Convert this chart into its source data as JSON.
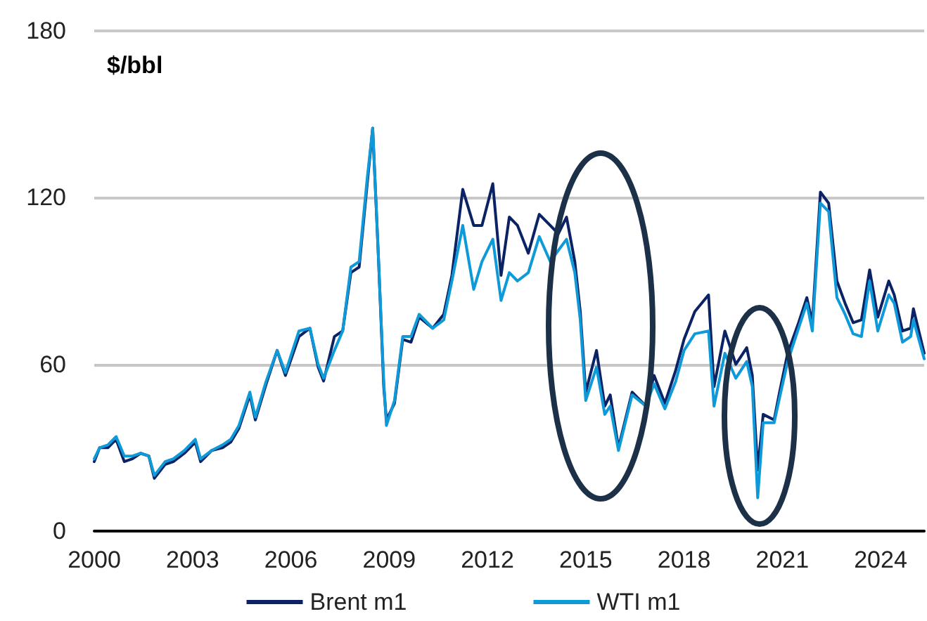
{
  "chart_data": {
    "type": "line",
    "ylabel": "$/bbl",
    "x": [
      "2000-01",
      "2000-03",
      "2000-06",
      "2000-09",
      "2000-12",
      "2001-03",
      "2001-06",
      "2001-09",
      "2001-11",
      "2002-03",
      "2002-06",
      "2002-10",
      "2003-02",
      "2003-04",
      "2003-08",
      "2003-12",
      "2004-03",
      "2004-06",
      "2004-10",
      "2004-12",
      "2005-04",
      "2005-08",
      "2005-11",
      "2006-04",
      "2006-08",
      "2006-11",
      "2007-01",
      "2007-05",
      "2007-08",
      "2007-11",
      "2008-02",
      "2008-05",
      "2008-07",
      "2008-09",
      "2008-11",
      "2008-12",
      "2009-03",
      "2009-06",
      "2009-09",
      "2009-12",
      "2010-05",
      "2010-09",
      "2010-12",
      "2011-04",
      "2011-08",
      "2011-11",
      "2012-03",
      "2012-06",
      "2012-09",
      "2012-12",
      "2013-04",
      "2013-08",
      "2013-12",
      "2014-03",
      "2014-06",
      "2014-09",
      "2014-11",
      "2015-01",
      "2015-05",
      "2015-08",
      "2015-10",
      "2016-01",
      "2016-06",
      "2016-11",
      "2017-02",
      "2017-06",
      "2017-10",
      "2018-01",
      "2018-05",
      "2018-10",
      "2018-12",
      "2019-04",
      "2019-08",
      "2019-12",
      "2020-02",
      "2020-04",
      "2020-06",
      "2020-10",
      "2020-12",
      "2021-03",
      "2021-07",
      "2021-10",
      "2021-12",
      "2022-03",
      "2022-06",
      "2022-09",
      "2022-12",
      "2023-03",
      "2023-06",
      "2023-09",
      "2023-12",
      "2024-04",
      "2024-06",
      "2024-09",
      "2024-12",
      "2025-01",
      "2025-05"
    ],
    "series": [
      {
        "name": "Brent m1",
        "color": "#0b2265",
        "values": [
          25,
          30,
          30,
          33,
          25,
          26,
          28,
          27,
          19,
          24,
          25,
          28,
          32,
          25,
          29,
          30,
          32,
          37,
          49,
          40,
          53,
          65,
          56,
          70,
          73,
          59,
          54,
          70,
          72,
          93,
          95,
          125,
          145,
          100,
          52,
          40,
          46,
          69,
          68,
          77,
          73,
          78,
          92,
          123,
          110,
          110,
          125,
          92,
          113,
          110,
          100,
          114,
          110,
          107,
          113,
          97,
          79,
          50,
          65,
          45,
          49,
          30,
          50,
          45,
          56,
          46,
          58,
          69,
          79,
          85,
          52,
          72,
          60,
          66,
          56,
          22,
          42,
          40,
          50,
          64,
          75,
          84,
          75,
          122,
          118,
          90,
          82,
          75,
          76,
          94,
          77,
          90,
          85,
          72,
          73,
          80,
          64
        ]
      },
      {
        "name": "WTI m1",
        "color": "#0e9ad8",
        "values": [
          26,
          30,
          31,
          34,
          27,
          27,
          28,
          27,
          20,
          25,
          26,
          29,
          33,
          26,
          29,
          31,
          33,
          38,
          50,
          41,
          54,
          65,
          57,
          72,
          73,
          60,
          55,
          65,
          72,
          95,
          97,
          127,
          145,
          100,
          54,
          38,
          47,
          70,
          70,
          78,
          73,
          76,
          90,
          110,
          87,
          97,
          105,
          83,
          93,
          90,
          93,
          106,
          97,
          101,
          105,
          93,
          76,
          47,
          59,
          42,
          45,
          29,
          49,
          45,
          53,
          44,
          54,
          65,
          71,
          72,
          45,
          64,
          55,
          61,
          52,
          12,
          39,
          39,
          48,
          61,
          73,
          82,
          72,
          118,
          115,
          84,
          78,
          71,
          70,
          90,
          72,
          85,
          82,
          68,
          70,
          76,
          62
        ]
      }
    ],
    "xlim": [
      "2000-01",
      "2025-05"
    ],
    "xticks": [
      "2000",
      "2003",
      "2006",
      "2009",
      "2012",
      "2015",
      "2018",
      "2021",
      "2024"
    ],
    "ylim": [
      0,
      180
    ],
    "yticks": [
      0,
      60,
      120,
      180
    ],
    "grid": "y",
    "legend": "bottom",
    "marker": "none",
    "line_style": "solid"
  }
}
